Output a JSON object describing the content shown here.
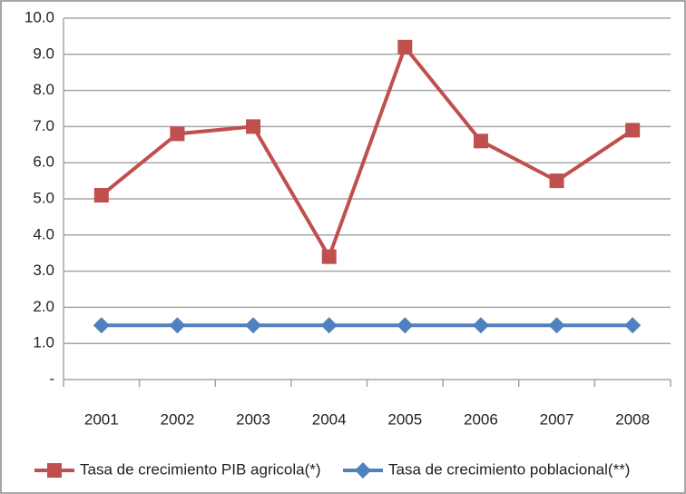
{
  "chart_data": {
    "type": "line",
    "categories": [
      "2001",
      "2002",
      "2003",
      "2004",
      "2005",
      "2006",
      "2007",
      "2008"
    ],
    "series": [
      {
        "name": "Tasa de crecimiento PIB agricola(*)",
        "color": "#c0504d",
        "marker": "square",
        "values": [
          5.1,
          6.8,
          7.0,
          3.4,
          9.2,
          6.6,
          5.5,
          6.9
        ]
      },
      {
        "name": "Tasa de crecimiento poblacional(**)",
        "color": "#4f81bd",
        "marker": "diamond",
        "values": [
          1.5,
          1.5,
          1.5,
          1.5,
          1.5,
          1.5,
          1.5,
          1.5
        ]
      }
    ],
    "ylim": [
      0,
      10
    ],
    "yticks": [
      {
        "value": 0,
        "label": "-"
      },
      {
        "value": 1,
        "label": "1.0"
      },
      {
        "value": 2,
        "label": "2.0"
      },
      {
        "value": 3,
        "label": "3.0"
      },
      {
        "value": 4,
        "label": "4.0"
      },
      {
        "value": 5,
        "label": "5.0"
      },
      {
        "value": 6,
        "label": "6.0"
      },
      {
        "value": 7,
        "label": "7.0"
      },
      {
        "value": 8,
        "label": "8.0"
      },
      {
        "value": 9,
        "label": "9.0"
      },
      {
        "value": 10,
        "label": "10.0"
      }
    ],
    "grid": true,
    "legend": "bottom"
  }
}
